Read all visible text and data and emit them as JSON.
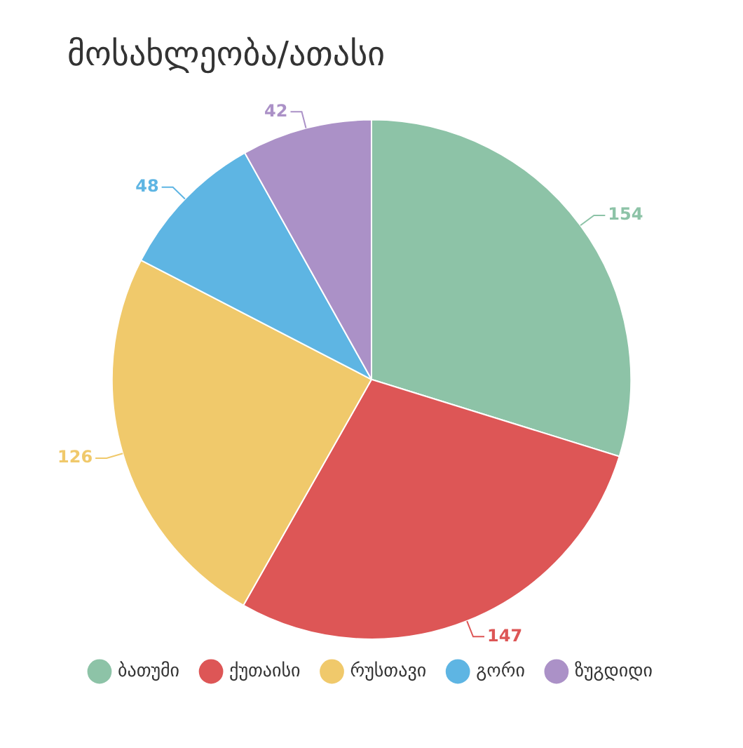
{
  "chart_data": {
    "type": "pie",
    "title": "მოსახლეობა/ათასი",
    "categories": [
      "ბათუმი",
      "ქუთაისი",
      "რუსთავი",
      "გორი",
      "ზუგდიდი"
    ],
    "values": [
      154,
      147,
      126,
      48,
      42
    ],
    "colors": [
      "#8dc3a7",
      "#dd5656",
      "#f0c96b",
      "#5eb5e3",
      "#ab91c7"
    ],
    "data_labels": true,
    "legend": "bottom"
  }
}
